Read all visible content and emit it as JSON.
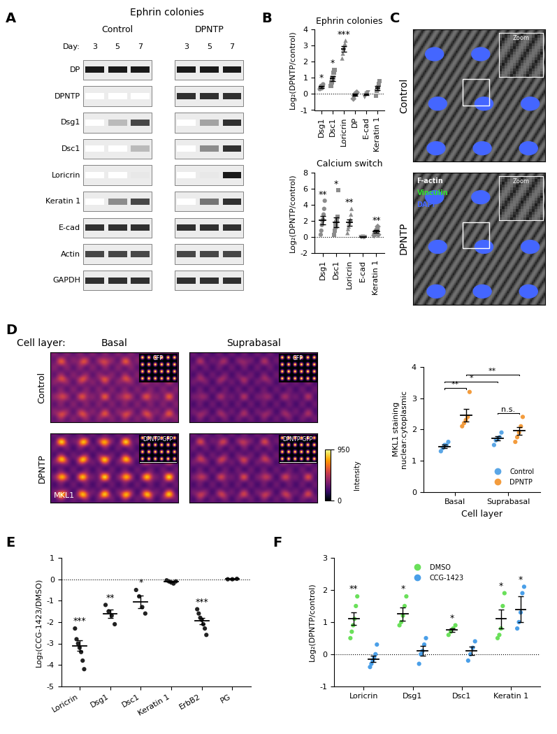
{
  "panel_labels": [
    "A",
    "B",
    "C",
    "D",
    "E",
    "F"
  ],
  "blot": {
    "title": "Ephrin colonies",
    "groups": [
      "Control",
      "DPNTP"
    ],
    "day_label": "Day:",
    "days": [
      3,
      5,
      7
    ],
    "rows": [
      {
        "name": "DP",
        "Control": [
          1,
          1,
          1
        ],
        "DPNTP": [
          1,
          1,
          1
        ]
      },
      {
        "name": "DPNTP",
        "Control": [
          0,
          0,
          0
        ],
        "DPNTP": [
          0.9,
          0.9,
          0.9
        ]
      },
      {
        "name": "Dsg1",
        "Control": [
          0,
          0.3,
          0.8
        ],
        "DPNTP": [
          0,
          0.4,
          0.9
        ]
      },
      {
        "name": "Dsc1",
        "Control": [
          0,
          0,
          0.3
        ],
        "DPNTP": [
          0,
          0.5,
          0.9
        ]
      },
      {
        "name": "Loricrin",
        "Control": [
          0,
          0,
          0.1
        ],
        "DPNTP": [
          0,
          0.1,
          1
        ]
      },
      {
        "name": "Keratin 1",
        "Control": [
          0,
          0.5,
          0.8
        ],
        "DPNTP": [
          0,
          0.6,
          0.9
        ]
      },
      {
        "name": "E-cad",
        "Control": [
          0.9,
          0.9,
          0.9
        ],
        "DPNTP": [
          0.9,
          0.9,
          0.9
        ]
      },
      {
        "name": "Actin",
        "Control": [
          0.8,
          0.8,
          0.8
        ],
        "DPNTP": [
          0.8,
          0.8,
          0.8
        ]
      },
      {
        "name": "GAPDH",
        "Control": [
          0.9,
          0.9,
          0.9
        ],
        "DPNTP": [
          0.9,
          0.9,
          0.9
        ]
      }
    ]
  },
  "micrographs": {
    "rows": [
      "Control",
      "DPNTP"
    ],
    "zoom_label": "Zoom",
    "channels": [
      {
        "name": "F-actin",
        "color": "#ffffff"
      },
      {
        "name": "Vinculin",
        "color": "#33dd33"
      },
      {
        "name": "DAPI",
        "color": "#4466ff"
      }
    ]
  },
  "mkl1_images": {
    "header": "Cell layer:",
    "columns": [
      "Basal",
      "Suprabasal"
    ],
    "rows": [
      "Control",
      "DPNTP"
    ],
    "insets": [
      [
        "GFP",
        "GFP"
      ],
      [
        "DPNTP-GFP",
        "DPNTP-GFP"
      ]
    ],
    "stain": "MKL1",
    "colorbar": {
      "label": "Intensity",
      "range": [
        0,
        950
      ],
      "ticks": [
        0,
        950
      ]
    }
  },
  "chart_data": [
    {
      "type": "scatter",
      "title": "Ephrin colonies",
      "y_label": "Log₂(DPNTP/control)",
      "categories": [
        "Dsg1",
        "Dsc1",
        "Loricrin",
        "DP",
        "E-cad",
        "Keratin 1"
      ],
      "color": "#8c8c8c",
      "line_style": "dashed",
      "markers": [
        "circle",
        "square",
        "triangle",
        "diamond",
        "triangle_down",
        "square"
      ],
      "points": [
        [
          0.3,
          0.4,
          0.5,
          0.35,
          0.45,
          0.6
        ],
        [
          0.5,
          0.7,
          0.9,
          1.0,
          1.3,
          1.5
        ],
        [
          2.2,
          2.5,
          2.8,
          3.0,
          3.1,
          3.3
        ],
        [
          -0.3,
          -0.1,
          0,
          0.05,
          0.1
        ],
        [
          -0.2,
          -0.1,
          0,
          0.05,
          0.1
        ],
        [
          -0.1,
          0.2,
          0.3,
          0.4,
          0.6,
          0.8
        ]
      ],
      "means": [
        0.43,
        0.95,
        2.8,
        -0.05,
        -0.03,
        0.37
      ],
      "errors": [
        0.05,
        0.16,
        0.17,
        0.07,
        0.05,
        0.13
      ],
      "significance": [
        "*",
        "*",
        "***",
        null,
        null,
        null
      ],
      "ylim": [
        -1,
        4
      ],
      "yticks": [
        -1,
        0,
        1,
        2,
        3,
        4
      ]
    },
    {
      "type": "scatter",
      "title": "Calcium switch",
      "y_label": "Log₂(DPNTP/control)",
      "categories": [
        "Dsg1",
        "Dsc1",
        "Loricrin",
        "E-cad",
        "Keratin 1"
      ],
      "color": "#8c8c8c",
      "line_style": "solid",
      "markers": [
        "circle",
        "square",
        "triangle",
        "triangle_down",
        "diamond"
      ],
      "points": [
        [
          0.3,
          0.8,
          1.5,
          2.0,
          2.2,
          2.8,
          3.5,
          4.5
        ],
        [
          0.3,
          0.8,
          1.2,
          1.5,
          1.8,
          2.2,
          2.5,
          5.8
        ],
        [
          0.5,
          1.0,
          1.3,
          1.8,
          2.0,
          2.2,
          2.8,
          3.5
        ],
        [
          0,
          0,
          0.05,
          -0.05,
          0
        ],
        [
          0.2,
          0.4,
          0.5,
          0.6,
          0.8,
          1.0,
          1.3,
          0.3
        ]
      ],
      "means": [
        2.1,
        1.8,
        1.8,
        0,
        0.7
      ],
      "errors": [
        0.5,
        0.6,
        0.4,
        0.02,
        0.15
      ],
      "significance": [
        "**",
        "*",
        "**",
        null,
        "**"
      ],
      "ylim": [
        -2,
        8
      ],
      "yticks": [
        -2,
        0,
        2,
        4,
        6,
        8
      ]
    },
    {
      "type": "scatter",
      "x_label": "Cell layer",
      "y_label": "MKL1 staining\nnuclear:cytoplasmic",
      "categories": [
        "Basal",
        "Suprabasal"
      ],
      "legend": "lower right",
      "line_style": "solid",
      "series": [
        {
          "name": "Control",
          "color": "#5aa6e6",
          "marker": "circle",
          "points": [
            [
              1.3,
              1.4,
              1.5,
              1.5,
              1.6
            ],
            [
              1.5,
              1.65,
              1.7,
              1.75,
              1.9
            ]
          ],
          "means": [
            1.45,
            1.72
          ],
          "errors": [
            0.06,
            0.07
          ]
        },
        {
          "name": "DPNTP",
          "color": "#f39c3d",
          "marker": "circle",
          "points": [
            [
              2.1,
              2.2,
              2.3,
              2.4,
              3.2
            ],
            [
              1.6,
              1.75,
              1.9,
              2.1,
              2.4
            ]
          ],
          "means": [
            2.45,
            1.95
          ],
          "errors": [
            0.2,
            0.13
          ]
        }
      ],
      "comparisons": [
        {
          "groups": [
            [
              0,
              0
            ],
            [
              0,
              1
            ]
          ],
          "label": "**"
        },
        {
          "groups": [
            [
              0,
              0
            ],
            [
              1,
              0
            ]
          ],
          "label": "*"
        },
        {
          "groups": [
            [
              0,
              1
            ],
            [
              1,
              1
            ]
          ],
          "label": "**"
        },
        {
          "groups": [
            [
              1,
              0
            ],
            [
              1,
              1
            ]
          ],
          "label": "n.s."
        }
      ],
      "ylim": [
        0,
        4
      ],
      "yticks": [
        0,
        1,
        2,
        3,
        4
      ]
    },
    {
      "type": "scatter",
      "y_label": "Log₂(CCG-1423/DMSO)",
      "categories": [
        "Loricrin",
        "Dsg1",
        "Dsc1",
        "Keratin 1",
        "ErbB2",
        "PG"
      ],
      "color": "#222222",
      "line_style": "solid",
      "markers": [
        "circle",
        "circle",
        "circle",
        "circle",
        "circle",
        "circle"
      ],
      "points": [
        [
          -2.3,
          -2.8,
          -3.0,
          -3.2,
          -3.4,
          -3.8,
          -4.2
        ],
        [
          -1.2,
          -1.5,
          -1.7,
          -2.1
        ],
        [
          -0.5,
          -0.8,
          -1.3,
          -1.6
        ],
        [
          -0.05,
          -0.1,
          -0.15,
          -0.2,
          -0.1
        ],
        [
          -1.4,
          -1.6,
          -1.8,
          -1.9,
          -2.1,
          -2.3,
          -2.6
        ],
        [
          0,
          0,
          0.02
        ]
      ],
      "means": [
        -3.1,
        -1.6,
        -1.05,
        -0.12,
        -1.95,
        0.01
      ],
      "errors": [
        0.25,
        0.2,
        0.3,
        0.03,
        0.15,
        0.01
      ],
      "significance": [
        "***",
        "**",
        "*",
        null,
        "***",
        null
      ],
      "ylim": [
        -5,
        1
      ],
      "yticks": [
        -5,
        -4,
        -3,
        -2,
        -1,
        0,
        1
      ]
    },
    {
      "type": "scatter",
      "y_label": "Log₂(DPNTP/control)",
      "categories": [
        "Loricrin",
        "Dsg1",
        "Dsc1",
        "Keratin 1"
      ],
      "legend": "upper center",
      "line_style": "solid",
      "series": [
        {
          "name": "DMSO",
          "color": "#6ae05a",
          "marker": "circle",
          "points": [
            [
              0.5,
              0.7,
              0.9,
              1.1,
              1.5,
              1.8
            ],
            [
              0.9,
              1.0,
              1.2,
              1.5,
              1.8
            ],
            [
              0.6,
              0.7,
              0.8,
              0.9
            ],
            [
              0.5,
              0.6,
              0.8,
              1.5,
              1.9
            ]
          ],
          "means": [
            1.1,
            1.25,
            0.75,
            1.1
          ],
          "errors": [
            0.2,
            0.2,
            0.06,
            0.3
          ],
          "significance": [
            "**",
            "*",
            "*",
            "*"
          ]
        },
        {
          "name": "CCG-1423",
          "color": "#4a9fe8",
          "marker": "circle",
          "points": [
            [
              -0.4,
              -0.3,
              -0.2,
              -0.1,
              0,
              0.3
            ],
            [
              -0.3,
              0,
              0.1,
              0.3,
              0.5
            ],
            [
              -0.2,
              0,
              0.2,
              0.4
            ],
            [
              0.8,
              1.0,
              1.3,
              1.9,
              2.1
            ]
          ],
          "means": [
            -0.15,
            0.1,
            0.1,
            1.4
          ],
          "errors": [
            0.1,
            0.15,
            0.13,
            0.4
          ],
          "significance": [
            null,
            null,
            null,
            "*"
          ]
        }
      ],
      "ylim": [
        -1,
        3
      ],
      "yticks": [
        -1,
        0,
        1,
        2,
        3
      ]
    }
  ]
}
